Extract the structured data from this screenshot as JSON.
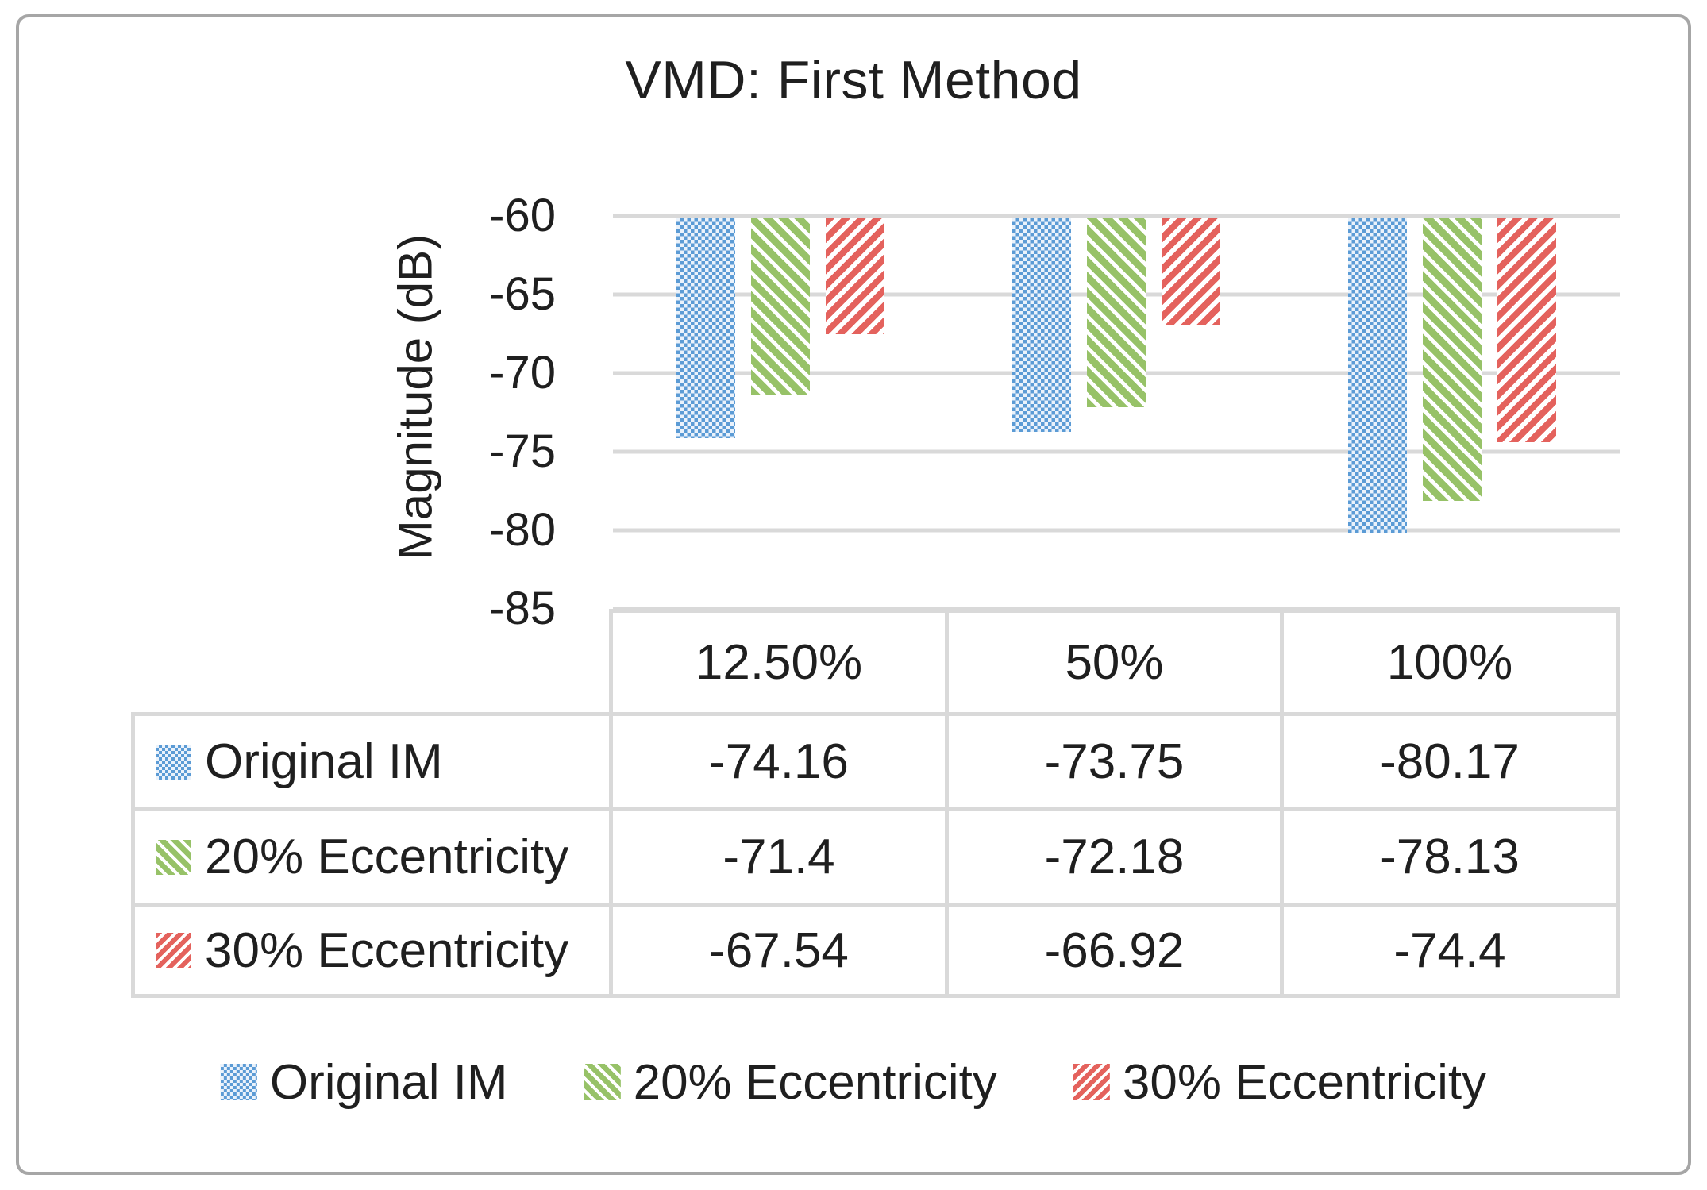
{
  "chart_data": {
    "type": "bar",
    "title": "VMD: First Method",
    "ylabel": "Magnitude (dB)",
    "xlabel": "",
    "categories": [
      "12.50%",
      "50%",
      "100%"
    ],
    "series": [
      {
        "name": "Original IM",
        "pattern": "blue-checker",
        "values": [
          -74.16,
          -73.75,
          -80.17
        ]
      },
      {
        "name": "20% Eccentricity",
        "pattern": "green-stripes",
        "values": [
          -71.4,
          -72.18,
          -78.13
        ]
      },
      {
        "name": "30% Eccentricity",
        "pattern": "red-stripes",
        "values": [
          -67.54,
          -66.92,
          -74.4
        ]
      }
    ],
    "ylim": [
      -85,
      -60
    ],
    "yticks": [
      -60,
      -65,
      -70,
      -75,
      -80,
      -85
    ],
    "grid": true,
    "legend_position": "bottom",
    "data_table_shown": true
  },
  "table": {
    "headers": [
      "12.50%",
      "50%",
      "100%"
    ],
    "rows": [
      {
        "label": "Original IM",
        "values": [
          "-74.16",
          "-73.75",
          "-80.17"
        ]
      },
      {
        "label": "20% Eccentricity",
        "values": [
          "-71.4",
          "-72.18",
          "-78.13"
        ]
      },
      {
        "label": "30% Eccentricity",
        "values": [
          "-67.54",
          "-66.92",
          "-74.4"
        ]
      }
    ]
  },
  "legend": {
    "items": [
      "Original IM",
      "20% Eccentricity",
      "30% Eccentricity"
    ]
  },
  "colors": {
    "blue": "#5B9BD5",
    "blue_light": "#EAF2FB",
    "green": "#97C268",
    "red": "#E4625D",
    "gridline": "#D9D9D9",
    "frame_border": "#A6A6A6",
    "text": "#1F1F1F"
  }
}
